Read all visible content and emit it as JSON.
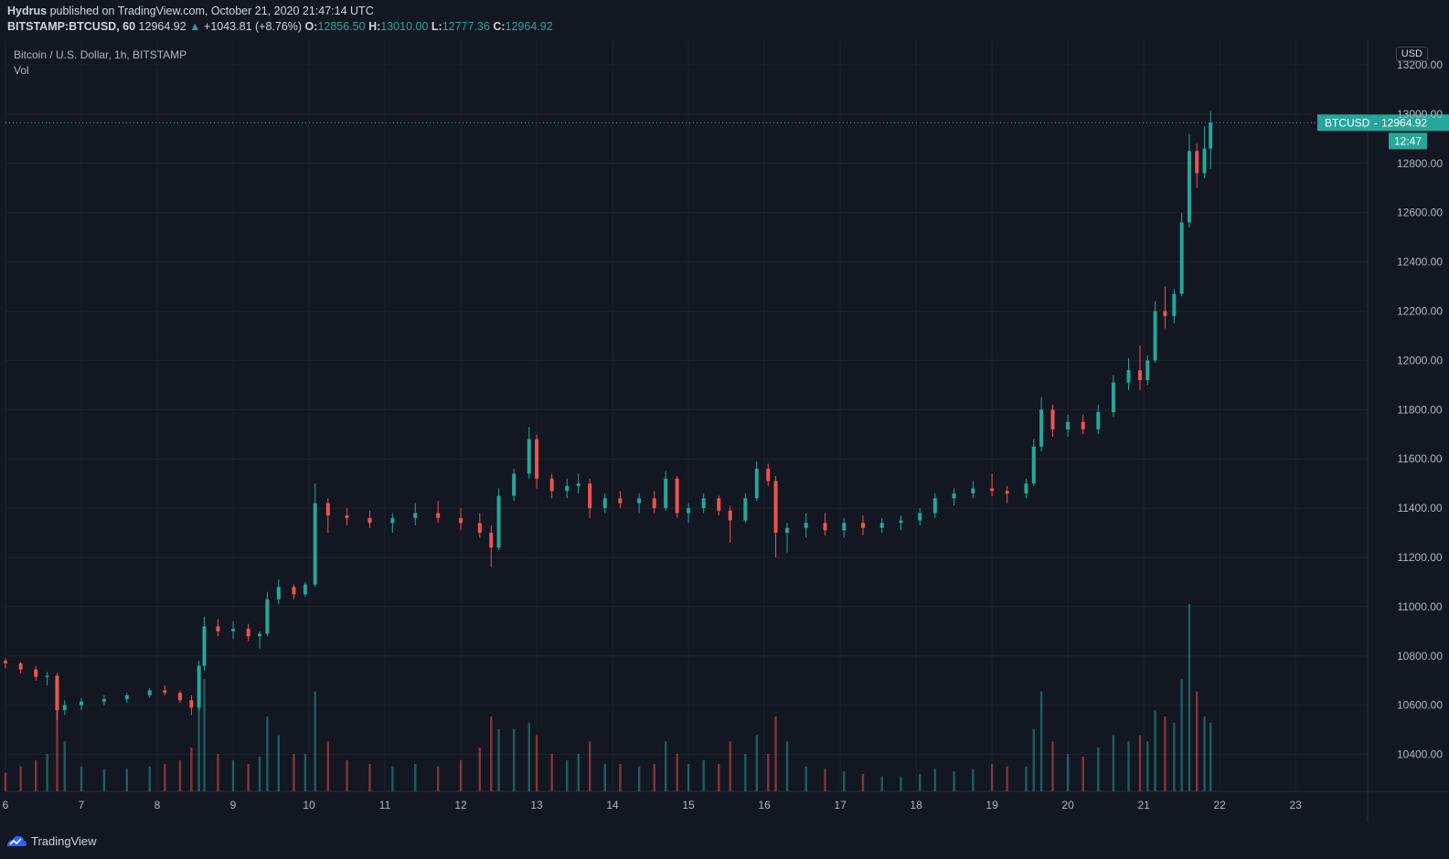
{
  "header": {
    "author": "Hydrus",
    "published": "published on TradingView.com, October 21, 2020 21:47:14 UTC",
    "symbol": "BITSTAMP:BTCUSD, 60",
    "last": "12964.92",
    "change_arrow": "▲",
    "change": "+1043.81 (+8.76%)",
    "o_label": "O:",
    "o_val": "12856.50",
    "h_label": "H:",
    "h_val": "13010.00",
    "l_label": "L:",
    "l_val": "12777.36",
    "c_label": "C:",
    "c_val": "12964.92"
  },
  "legend": {
    "title": "Bitcoin / U.S. Dollar, 1h, BITSTAMP",
    "vol": "Vol"
  },
  "currency_button": "USD",
  "price_tag": {
    "symbol": "BTCUSD",
    "price": "12964.92",
    "countdown": "12:47"
  },
  "footer": {
    "brand": "TradingView",
    "logo_icon": "tradingview-logo-icon"
  },
  "colors": {
    "up": "#26a69a",
    "down": "#ef5350",
    "background": "#131722",
    "grid": "#1e222d"
  },
  "chart_data": {
    "type": "candlestick",
    "interval": "1h",
    "ylim": [
      10250,
      13300
    ],
    "yticks": [
      "13200.00",
      "13000.00",
      "12800.00",
      "12600.00",
      "12400.00",
      "12200.00",
      "12000.00",
      "11800.00",
      "11600.00",
      "11400.00",
      "11200.00",
      "11000.00",
      "10800.00",
      "10600.00",
      "10400.00"
    ],
    "ytick_values": [
      13200,
      13000,
      12800,
      12600,
      12400,
      12200,
      12000,
      11800,
      11600,
      11400,
      11200,
      11000,
      10800,
      10600,
      10400
    ],
    "xticks": [
      "6",
      "7",
      "8",
      "9",
      "10",
      "11",
      "12",
      "13",
      "14",
      "15",
      "16",
      "17",
      "18",
      "19",
      "20",
      "21",
      "22",
      "23"
    ],
    "x_domain": [
      6,
      23.95
    ],
    "last_price": 12964.92,
    "candles": [
      [
        6.0,
        10780,
        10790,
        10750,
        10770,
        15
      ],
      [
        6.2,
        10770,
        10775,
        10730,
        10745,
        20
      ],
      [
        6.4,
        10745,
        10760,
        10700,
        10715,
        25
      ],
      [
        6.55,
        10715,
        10735,
        10680,
        10720,
        30
      ],
      [
        6.68,
        10720,
        10730,
        10540,
        10580,
        70
      ],
      [
        6.78,
        10580,
        10620,
        10560,
        10600,
        40
      ],
      [
        7.0,
        10600,
        10630,
        10580,
        10615,
        20
      ],
      [
        7.3,
        10615,
        10640,
        10600,
        10625,
        18
      ],
      [
        7.6,
        10625,
        10650,
        10610,
        10640,
        18
      ],
      [
        7.9,
        10640,
        10670,
        10630,
        10660,
        20
      ],
      [
        8.1,
        10660,
        10680,
        10640,
        10650,
        22
      ],
      [
        8.3,
        10650,
        10660,
        10610,
        10620,
        25
      ],
      [
        8.45,
        10620,
        10640,
        10560,
        10590,
        35
      ],
      [
        8.55,
        10590,
        10780,
        10580,
        10760,
        80
      ],
      [
        8.62,
        10760,
        10960,
        10740,
        10920,
        90
      ],
      [
        8.8,
        10920,
        10950,
        10880,
        10900,
        30
      ],
      [
        9.0,
        10900,
        10940,
        10870,
        10910,
        25
      ],
      [
        9.2,
        10910,
        10930,
        10860,
        10880,
        22
      ],
      [
        9.35,
        10880,
        10900,
        10830,
        10890,
        28
      ],
      [
        9.45,
        10890,
        11060,
        10880,
        11030,
        60
      ],
      [
        9.6,
        11030,
        11110,
        11010,
        11080,
        45
      ],
      [
        9.8,
        11080,
        11090,
        11030,
        11050,
        30
      ],
      [
        9.95,
        11050,
        11100,
        11040,
        11090,
        30
      ],
      [
        10.08,
        11090,
        11500,
        11080,
        11420,
        80
      ],
      [
        10.25,
        11420,
        11440,
        11300,
        11370,
        40
      ],
      [
        10.5,
        11370,
        11400,
        11330,
        11360,
        25
      ],
      [
        10.8,
        11360,
        11390,
        11320,
        11340,
        22
      ],
      [
        11.1,
        11340,
        11380,
        11300,
        11360,
        20
      ],
      [
        11.4,
        11360,
        11420,
        11330,
        11380,
        22
      ],
      [
        11.7,
        11380,
        11430,
        11340,
        11360,
        20
      ],
      [
        12.0,
        11360,
        11400,
        11310,
        11340,
        25
      ],
      [
        12.25,
        11340,
        11380,
        11280,
        11300,
        35
      ],
      [
        12.4,
        11300,
        11330,
        11160,
        11240,
        60
      ],
      [
        12.5,
        11240,
        11480,
        11230,
        11450,
        50
      ],
      [
        12.7,
        11450,
        11560,
        11430,
        11540,
        50
      ],
      [
        12.9,
        11540,
        11730,
        11520,
        11680,
        55
      ],
      [
        13.0,
        11680,
        11700,
        11480,
        11520,
        45
      ],
      [
        13.2,
        11520,
        11540,
        11440,
        11470,
        30
      ],
      [
        13.4,
        11470,
        11520,
        11440,
        11490,
        25
      ],
      [
        13.55,
        11490,
        11540,
        11460,
        11500,
        30
      ],
      [
        13.7,
        11500,
        11520,
        11360,
        11400,
        40
      ],
      [
        13.9,
        11400,
        11460,
        11380,
        11440,
        22
      ],
      [
        14.1,
        11440,
        11470,
        11400,
        11420,
        22
      ],
      [
        14.35,
        11420,
        11460,
        11380,
        11440,
        20
      ],
      [
        14.55,
        11440,
        11470,
        11380,
        11400,
        22
      ],
      [
        14.7,
        11400,
        11550,
        11390,
        11520,
        40
      ],
      [
        14.85,
        11520,
        11530,
        11360,
        11380,
        30
      ],
      [
        15.0,
        11380,
        11420,
        11340,
        11400,
        22
      ],
      [
        15.2,
        11400,
        11460,
        11380,
        11440,
        25
      ],
      [
        15.4,
        11440,
        11450,
        11370,
        11390,
        22
      ],
      [
        15.55,
        11390,
        11410,
        11260,
        11350,
        40
      ],
      [
        15.75,
        11350,
        11460,
        11340,
        11440,
        30
      ],
      [
        15.9,
        11440,
        11590,
        11430,
        11560,
        45
      ],
      [
        16.05,
        11560,
        11580,
        11490,
        11510,
        30
      ],
      [
        16.15,
        11510,
        11530,
        11200,
        11300,
        60
      ],
      [
        16.3,
        11300,
        11340,
        11220,
        11320,
        40
      ],
      [
        16.55,
        11320,
        11380,
        11280,
        11340,
        20
      ],
      [
        16.8,
        11340,
        11380,
        11290,
        11310,
        18
      ],
      [
        17.05,
        11310,
        11360,
        11280,
        11340,
        16
      ],
      [
        17.3,
        11340,
        11370,
        11290,
        11320,
        14
      ],
      [
        17.55,
        11320,
        11360,
        11300,
        11340,
        12
      ],
      [
        17.8,
        11340,
        11370,
        11310,
        11350,
        12
      ],
      [
        18.05,
        11350,
        11400,
        11330,
        11380,
        14
      ],
      [
        18.25,
        11380,
        11460,
        11360,
        11440,
        18
      ],
      [
        18.5,
        11440,
        11480,
        11410,
        11460,
        16
      ],
      [
        18.75,
        11460,
        11510,
        11440,
        11480,
        18
      ],
      [
        19.0,
        11480,
        11540,
        11450,
        11470,
        22
      ],
      [
        19.2,
        11470,
        11490,
        11420,
        11460,
        20
      ],
      [
        19.45,
        11460,
        11520,
        11440,
        11500,
        20
      ],
      [
        19.55,
        11500,
        11680,
        11490,
        11650,
        50
      ],
      [
        19.65,
        11650,
        11850,
        11630,
        11800,
        80
      ],
      [
        19.8,
        11800,
        11820,
        11690,
        11720,
        40
      ],
      [
        20.0,
        11720,
        11780,
        11690,
        11750,
        30
      ],
      [
        20.2,
        11750,
        11780,
        11700,
        11720,
        28
      ],
      [
        20.4,
        11720,
        11820,
        11700,
        11790,
        35
      ],
      [
        20.6,
        11790,
        11940,
        11770,
        11910,
        45
      ],
      [
        20.8,
        11910,
        12010,
        11880,
        11960,
        40
      ],
      [
        20.95,
        11960,
        12060,
        11880,
        11920,
        45
      ],
      [
        21.05,
        11920,
        12020,
        11900,
        12000,
        40
      ],
      [
        21.15,
        12000,
        12240,
        11990,
        12200,
        65
      ],
      [
        21.28,
        12200,
        12300,
        12130,
        12180,
        60
      ],
      [
        21.4,
        12180,
        12290,
        12150,
        12270,
        55
      ],
      [
        21.5,
        12270,
        12600,
        12260,
        12560,
        90
      ],
      [
        21.6,
        12560,
        12920,
        12540,
        12850,
        150
      ],
      [
        21.7,
        12850,
        12880,
        12700,
        12760,
        80
      ],
      [
        21.8,
        12760,
        12950,
        12740,
        12860,
        60
      ],
      [
        21.88,
        12860,
        13010,
        12777,
        12965,
        55
      ]
    ]
  }
}
